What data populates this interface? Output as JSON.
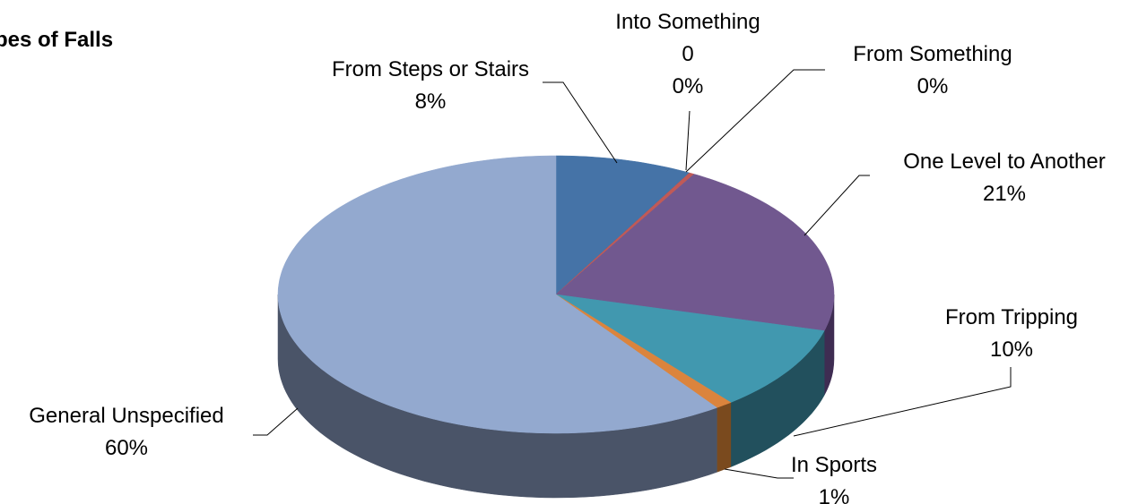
{
  "chart_data": {
    "type": "pie",
    "title": "pes of Falls",
    "style": "3d",
    "slices": [
      {
        "category": "From Steps or Stairs",
        "value": 8,
        "label_lines": [
          "From Steps or Stairs",
          "8%"
        ],
        "color": "#4573a7",
        "side_color": "#2f4e72"
      },
      {
        "category": "Into Something",
        "value": 0,
        "label_lines": [
          "Into Something",
          "0",
          "0%"
        ],
        "color": "#aa4643",
        "side_color": "#74302e"
      },
      {
        "category": "From Something",
        "value": 0.3,
        "label_lines": [
          "From Something",
          "0%"
        ],
        "color": "#c05a57",
        "side_color": "#85403d"
      },
      {
        "category": "One Level to Another",
        "value": 21,
        "label_lines": [
          "One Level to Another",
          "21%"
        ],
        "color": "#71588f",
        "side_color": "#3e2c52"
      },
      {
        "category": "From Tripping",
        "value": 10,
        "label_lines": [
          "From Tripping",
          "10%"
        ],
        "color": "#4198af",
        "side_color": "#22505d"
      },
      {
        "category": "In Sports",
        "value": 1,
        "label_lines": [
          "In Sports",
          "1%"
        ],
        "color": "#db843d",
        "side_color": "#7a4a1e"
      },
      {
        "category": "General Unspecified",
        "value": 60,
        "label_lines": [
          "General Unspecified",
          "60%"
        ],
        "color": "#93a9cf",
        "side_color": "#4a5468"
      }
    ]
  }
}
